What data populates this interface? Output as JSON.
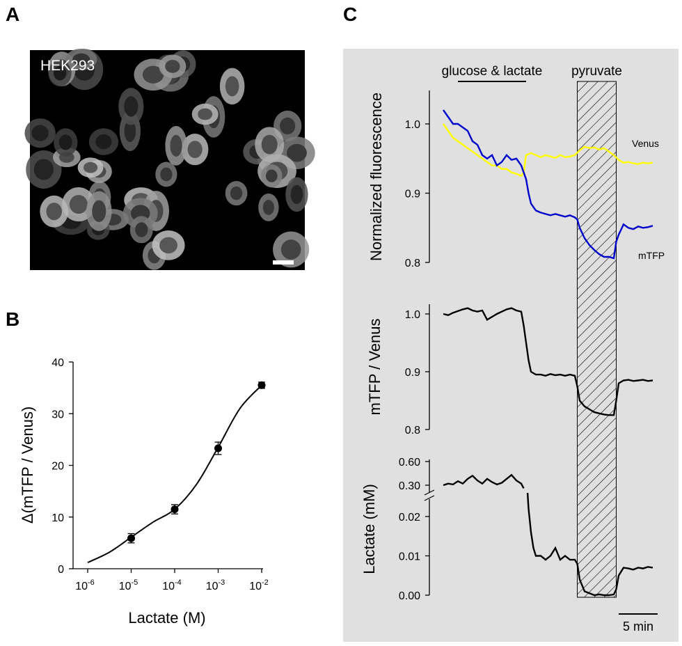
{
  "panels": {
    "a_label": "A",
    "b_label": "B",
    "c_label": "C"
  },
  "panel_a": {
    "cell_label": "HEK293"
  },
  "chart_data": [
    {
      "panel": "B",
      "type": "scatter",
      "xlabel": "Lactate (M)",
      "ylabel": "Δ(mTFP / Venus)",
      "x_scale": "log",
      "xlim": [
        1e-06,
        0.01
      ],
      "ylim": [
        0,
        40
      ],
      "x_ticks": [
        {
          "base": "10",
          "exp": "-6"
        },
        {
          "base": "10",
          "exp": "-5"
        },
        {
          "base": "10",
          "exp": "-4"
        },
        {
          "base": "10",
          "exp": "-3"
        },
        {
          "base": "10",
          "exp": "-2"
        }
      ],
      "y_ticks": [
        "0",
        "10",
        "20",
        "30",
        "40"
      ],
      "points": [
        {
          "x": 1e-05,
          "y": 5.9,
          "err": 0.9
        },
        {
          "x": 0.0001,
          "y": 11.5,
          "err": 0.9
        },
        {
          "x": 0.001,
          "y": 23.3,
          "err": 1.2
        },
        {
          "x": 0.01,
          "y": 35.5,
          "err": 0.6
        }
      ],
      "fit_curve": {
        "x_log10": [
          -6,
          -5.5,
          -5,
          -4.5,
          -4,
          -3.5,
          -3,
          -2.5,
          -2
        ],
        "y": [
          1.2,
          3.2,
          6.1,
          9.0,
          11.5,
          16.3,
          23.5,
          31.0,
          35.5
        ]
      },
      "grid": false
    },
    {
      "panel": "C",
      "type": "line",
      "time_scale_label": "5 min",
      "time_range": [
        0,
        44
      ],
      "treatments": [
        {
          "label": "glucose & lactate",
          "start": 3,
          "end": 17
        },
        {
          "label": "pyruvate",
          "start": 27.5,
          "end": 35.5,
          "hatched": true
        }
      ],
      "subplots": [
        {
          "ylabel": "Normalized fluorescence",
          "ylim": [
            0.8,
            1.05
          ],
          "y_ticks": [
            "0.8",
            "0.9",
            "1.0"
          ],
          "series": [
            {
              "name": "Venus",
              "color": "#ffff00",
              "t": [
                0,
                1,
                2,
                3,
                4,
                5,
                6,
                7,
                8,
                9,
                10,
                11,
                12,
                13,
                14,
                15,
                16,
                16.5,
                17,
                18,
                19,
                20,
                21,
                22,
                23,
                24,
                25,
                26,
                27,
                28,
                29,
                30,
                31,
                32,
                33,
                34,
                35,
                36,
                37,
                38,
                39,
                40,
                41,
                42,
                43
              ],
              "y": [
                1.0,
                0.99,
                0.98,
                0.975,
                0.97,
                0.965,
                0.96,
                0.955,
                0.95,
                0.945,
                0.94,
                0.94,
                0.935,
                0.935,
                0.93,
                0.928,
                0.925,
                0.93,
                0.955,
                0.958,
                0.955,
                0.952,
                0.955,
                0.953,
                0.951,
                0.955,
                0.952,
                0.953,
                0.955,
                0.962,
                0.967,
                0.965,
                0.966,
                0.963,
                0.965,
                0.96,
                0.955,
                0.948,
                0.944,
                0.945,
                0.943,
                0.942,
                0.944,
                0.943,
                0.944
              ]
            },
            {
              "name": "mTFP",
              "color": "#0000cc",
              "t": [
                0,
                1,
                2,
                3,
                4,
                5,
                6,
                7,
                8,
                9,
                10,
                11,
                12,
                13,
                14,
                15,
                16,
                17,
                17.5,
                18,
                19,
                20,
                21,
                22,
                23,
                24,
                25,
                26,
                27,
                27.5,
                28,
                29,
                30,
                31,
                32,
                33,
                34,
                35,
                35.5,
                36,
                37,
                38,
                39,
                40,
                41,
                42,
                43
              ],
              "y": [
                1.02,
                1.01,
                1.0,
                1.0,
                0.995,
                0.99,
                0.975,
                0.97,
                0.955,
                0.95,
                0.955,
                0.94,
                0.945,
                0.955,
                0.948,
                0.95,
                0.94,
                0.92,
                0.9,
                0.885,
                0.875,
                0.872,
                0.87,
                0.868,
                0.87,
                0.868,
                0.866,
                0.868,
                0.865,
                0.862,
                0.85,
                0.835,
                0.825,
                0.818,
                0.812,
                0.808,
                0.808,
                0.806,
                0.83,
                0.84,
                0.855,
                0.85,
                0.848,
                0.852,
                0.85,
                0.851,
                0.853
              ]
            }
          ]
        },
        {
          "ylabel": "mTFP / Venus",
          "ylim": [
            0.8,
            1.02
          ],
          "y_ticks": [
            "0.8",
            "0.9",
            "1.0"
          ],
          "series": [
            {
              "color": "#000000",
              "t": [
                0,
                1,
                2,
                3,
                4,
                5,
                6,
                7,
                8,
                9,
                10,
                11,
                12,
                13,
                14,
                15,
                16,
                16.5,
                17,
                17.5,
                18,
                19,
                20,
                21,
                22,
                23,
                24,
                25,
                26,
                27,
                27.5,
                28,
                29,
                30,
                31,
                32,
                33,
                34,
                35,
                35.5,
                36,
                37,
                38,
                39,
                40,
                41,
                42,
                43
              ],
              "y": [
                1.0,
                0.998,
                1.002,
                1.005,
                1.008,
                1.01,
                1.006,
                1.004,
                1.006,
                0.99,
                0.995,
                1.0,
                1.004,
                1.008,
                1.01,
                1.006,
                1.004,
                0.98,
                0.95,
                0.92,
                0.9,
                0.895,
                0.895,
                0.893,
                0.896,
                0.894,
                0.895,
                0.893,
                0.895,
                0.893,
                0.875,
                0.85,
                0.84,
                0.835,
                0.83,
                0.828,
                0.826,
                0.825,
                0.825,
                0.85,
                0.88,
                0.885,
                0.886,
                0.884,
                0.885,
                0.886,
                0.884,
                0.885
              ]
            }
          ]
        },
        {
          "ylabel": "Lactate (mM)",
          "y_ticks": [
            "0.00",
            "0.01",
            "0.02",
            "0.30",
            "0.60"
          ],
          "axis_break": true,
          "series": [
            {
              "color": "#000000",
              "segments": [
                {
                  "t": [
                    0,
                    1,
                    2,
                    3,
                    4,
                    5,
                    6,
                    7,
                    8,
                    9,
                    10,
                    11,
                    12,
                    13,
                    14,
                    15,
                    16,
                    16.5
                  ],
                  "y": [
                    0.3,
                    0.32,
                    0.31,
                    0.35,
                    0.32,
                    0.38,
                    0.42,
                    0.36,
                    0.32,
                    0.38,
                    0.34,
                    0.31,
                    0.33,
                    0.38,
                    0.43,
                    0.36,
                    0.32,
                    0.26
                  ]
                },
                {
                  "t": [
                    17.3,
                    17.5,
                    18,
                    18.5,
                    19,
                    20,
                    21,
                    22,
                    23,
                    24,
                    25,
                    26,
                    27,
                    27.5,
                    28,
                    29,
                    30,
                    31,
                    32,
                    33,
                    34,
                    35,
                    35.5,
                    36,
                    37,
                    38,
                    39,
                    40,
                    41,
                    42,
                    43
                  ],
                  "y": [
                    0.026,
                    0.022,
                    0.016,
                    0.012,
                    0.01,
                    0.01,
                    0.009,
                    0.01,
                    0.012,
                    0.009,
                    0.01,
                    0.009,
                    0.009,
                    0.008,
                    0.004,
                    0.001,
                    0.0005,
                    0.0,
                    0.0002,
                    0.0,
                    0.0,
                    0.0002,
                    0.0015,
                    0.005,
                    0.007,
                    0.0068,
                    0.0065,
                    0.007,
                    0.0068,
                    0.0072,
                    0.007
                  ]
                }
              ]
            }
          ]
        }
      ]
    }
  ]
}
